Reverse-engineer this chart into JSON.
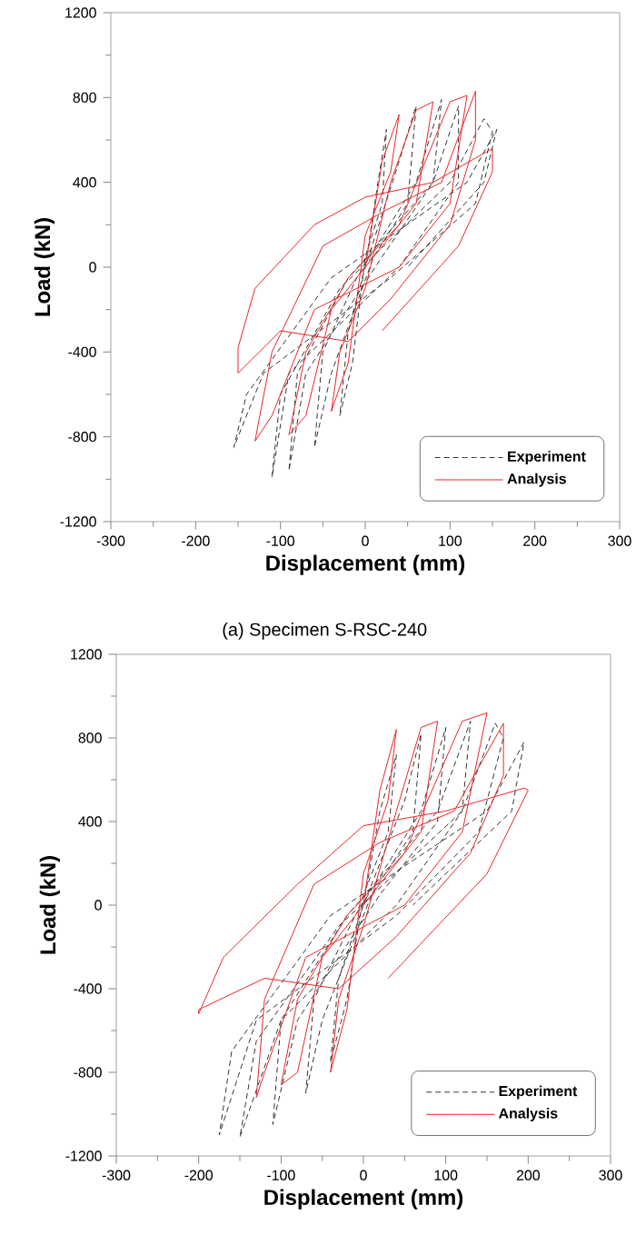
{
  "chart_data": [
    {
      "type": "line",
      "xlabel": "Displacement (mm)",
      "ylabel": "Load (kN)",
      "xlim": [
        -300,
        300
      ],
      "ylim": [
        -1200,
        1200
      ],
      "xticks": [
        -300,
        -200,
        -100,
        0,
        100,
        200,
        300
      ],
      "yticks": [
        -1200,
        -800,
        -400,
        0,
        400,
        800,
        1200
      ],
      "legend": "bottom right",
      "annotations": [
        "(a) Specimen S-RSC-240"
      ],
      "series": [
        {
          "name": "Experiment",
          "color": "#333333",
          "line_style": "dashed",
          "x": [
            0,
            15,
            25,
            20,
            0,
            -15,
            -30,
            -20,
            0,
            40,
            60,
            50,
            10,
            -40,
            -60,
            -50,
            -10,
            60,
            90,
            80,
            20,
            -70,
            -90,
            -80,
            -20,
            80,
            110,
            110,
            40,
            -90,
            -110,
            -100,
            -30,
            100,
            140,
            150,
            130,
            30,
            -120,
            -155,
            -140,
            -40,
            120,
            155,
            140,
            50
          ],
          "values": [
            0,
            400,
            650,
            300,
            50,
            -450,
            -700,
            -300,
            0,
            500,
            760,
            300,
            50,
            -500,
            -850,
            -400,
            -50,
            400,
            790,
            400,
            50,
            -500,
            -960,
            -500,
            -50,
            400,
            760,
            400,
            0,
            -500,
            -990,
            -600,
            -100,
            400,
            700,
            640,
            300,
            -50,
            -500,
            -850,
            -600,
            -50,
            400,
            650,
            400,
            0
          ]
        },
        {
          "name": "Analysis",
          "color": "#e8262a",
          "line_style": "solid",
          "x": [
            0,
            20,
            40,
            30,
            0,
            -20,
            -40,
            -30,
            0,
            30,
            60,
            80,
            60,
            20,
            -40,
            -70,
            -90,
            -70,
            -20,
            40,
            100,
            120,
            100,
            40,
            -60,
            -110,
            -130,
            -110,
            -50,
            25,
            90,
            130,
            130,
            100,
            30,
            -20,
            -100,
            -150,
            -150,
            -130,
            -60,
            0,
            80,
            150,
            150,
            110,
            20
          ],
          "values": [
            0,
            500,
            720,
            450,
            150,
            -450,
            -680,
            -400,
            -100,
            400,
            740,
            780,
            300,
            100,
            -200,
            -700,
            -790,
            -400,
            -50,
            200,
            780,
            810,
            300,
            0,
            -200,
            -700,
            -820,
            -400,
            100,
            270,
            400,
            830,
            600,
            200,
            -150,
            -350,
            -300,
            -500,
            -380,
            -100,
            200,
            330,
            400,
            560,
            450,
            100,
            -300
          ]
        }
      ]
    },
    {
      "type": "line",
      "xlabel": "Displacement (mm)",
      "ylabel": "Load (kN)",
      "xlim": [
        -300,
        300
      ],
      "ylim": [
        -1200,
        1200
      ],
      "xticks": [
        -300,
        -200,
        -100,
        0,
        100,
        200,
        300
      ],
      "yticks": [
        -1200,
        -800,
        -400,
        0,
        400,
        800,
        1200
      ],
      "legend": "bottom right",
      "series": [
        {
          "name": "Experiment",
          "color": "#333333",
          "line_style": "dashed",
          "x": [
            0,
            20,
            40,
            30,
            0,
            -20,
            -40,
            -30,
            0,
            50,
            70,
            60,
            10,
            -50,
            -70,
            -60,
            -10,
            70,
            100,
            90,
            20,
            -80,
            -110,
            -100,
            -20,
            90,
            130,
            120,
            40,
            -100,
            -150,
            -130,
            -30,
            120,
            160,
            170,
            140,
            40,
            -130,
            -175,
            -160,
            -40,
            150,
            195,
            180,
            60
          ],
          "values": [
            0,
            450,
            720,
            350,
            50,
            -450,
            -750,
            -350,
            0,
            500,
            820,
            350,
            50,
            -550,
            -900,
            -450,
            -50,
            450,
            850,
            400,
            50,
            -550,
            -1050,
            -550,
            -50,
            450,
            880,
            450,
            0,
            -550,
            -1110,
            -650,
            -100,
            450,
            870,
            800,
            350,
            -50,
            -550,
            -1100,
            -700,
            -50,
            450,
            780,
            450,
            0
          ]
        },
        {
          "name": "Analysis",
          "color": "#e8262a",
          "line_style": "solid",
          "x": [
            0,
            20,
            40,
            30,
            0,
            -20,
            -40,
            -30,
            0,
            40,
            70,
            90,
            70,
            20,
            -50,
            -80,
            -100,
            -80,
            -20,
            50,
            120,
            150,
            120,
            50,
            -70,
            -120,
            -130,
            -120,
            -60,
            20,
            110,
            170,
            170,
            130,
            40,
            -30,
            -120,
            -200,
            -200,
            -170,
            -80,
            0,
            100,
            195,
            200,
            150,
            30
          ],
          "values": [
            0,
            550,
            840,
            500,
            150,
            -500,
            -800,
            -450,
            -100,
            450,
            850,
            880,
            350,
            100,
            -250,
            -800,
            -860,
            -450,
            -50,
            250,
            880,
            920,
            350,
            0,
            -250,
            -800,
            -920,
            -450,
            100,
            300,
            450,
            870,
            620,
            250,
            -150,
            -400,
            -350,
            -500,
            -520,
            -250,
            100,
            380,
            450,
            560,
            550,
            150,
            -350
          ]
        }
      ]
    }
  ]
}
